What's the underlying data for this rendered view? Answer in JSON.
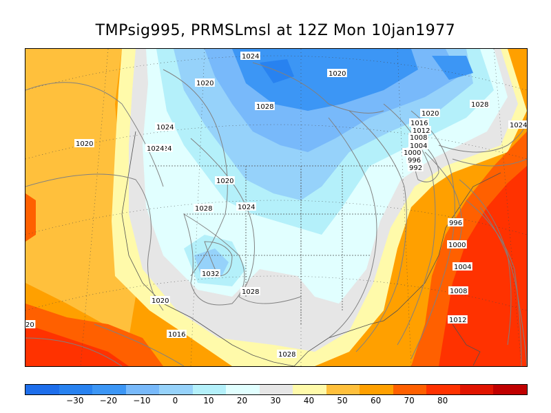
{
  "title": "TMPsig995, PRMSLmsl at 12Z Mon 10jan1977",
  "colors": {
    "levels": [
      "#1e6eeb",
      "#2882f0",
      "#3c96f5",
      "#78b9fa",
      "#96d2fa",
      "#b4f0fa",
      "#e1ffff",
      "#e6e6e6",
      "#fffaaa",
      "#ffc03c",
      "#ffa000",
      "#ff6000",
      "#ff3200",
      "#e11400",
      "#c00000"
    ],
    "contour": "#808080",
    "coast": "#505050"
  },
  "legend": {
    "ticks": [
      "−30",
      "−20",
      "−10",
      "0",
      "10",
      "20",
      "30",
      "40",
      "50",
      "60",
      "70",
      "80"
    ]
  },
  "isobar_labels": [
    {
      "text": "1024"
    },
    {
      "text": "1020"
    },
    {
      "text": "1020"
    },
    {
      "text": "1028"
    },
    {
      "text": "1024"
    },
    {
      "text": "1020"
    },
    {
      "text": "1016"
    },
    {
      "text": "1012"
    },
    {
      "text": "1028"
    },
    {
      "text": "1024"
    },
    {
      "text": "1020"
    },
    {
      "text": "1024"
    },
    {
      "text": "1024"
    },
    {
      "text": "1008"
    },
    {
      "text": "1004"
    },
    {
      "text": "1000"
    },
    {
      "text": "996"
    },
    {
      "text": "992"
    },
    {
      "text": "1020"
    },
    {
      "text": "1028"
    },
    {
      "text": "1024"
    },
    {
      "text": "996"
    },
    {
      "text": "1000"
    },
    {
      "text": "1032"
    },
    {
      "text": "1028"
    },
    {
      "text": "1004"
    },
    {
      "text": "1020"
    },
    {
      "text": "1008"
    },
    {
      "text": "20"
    },
    {
      "text": "1012"
    },
    {
      "text": "1016"
    },
    {
      "text": "1028"
    }
  ]
}
